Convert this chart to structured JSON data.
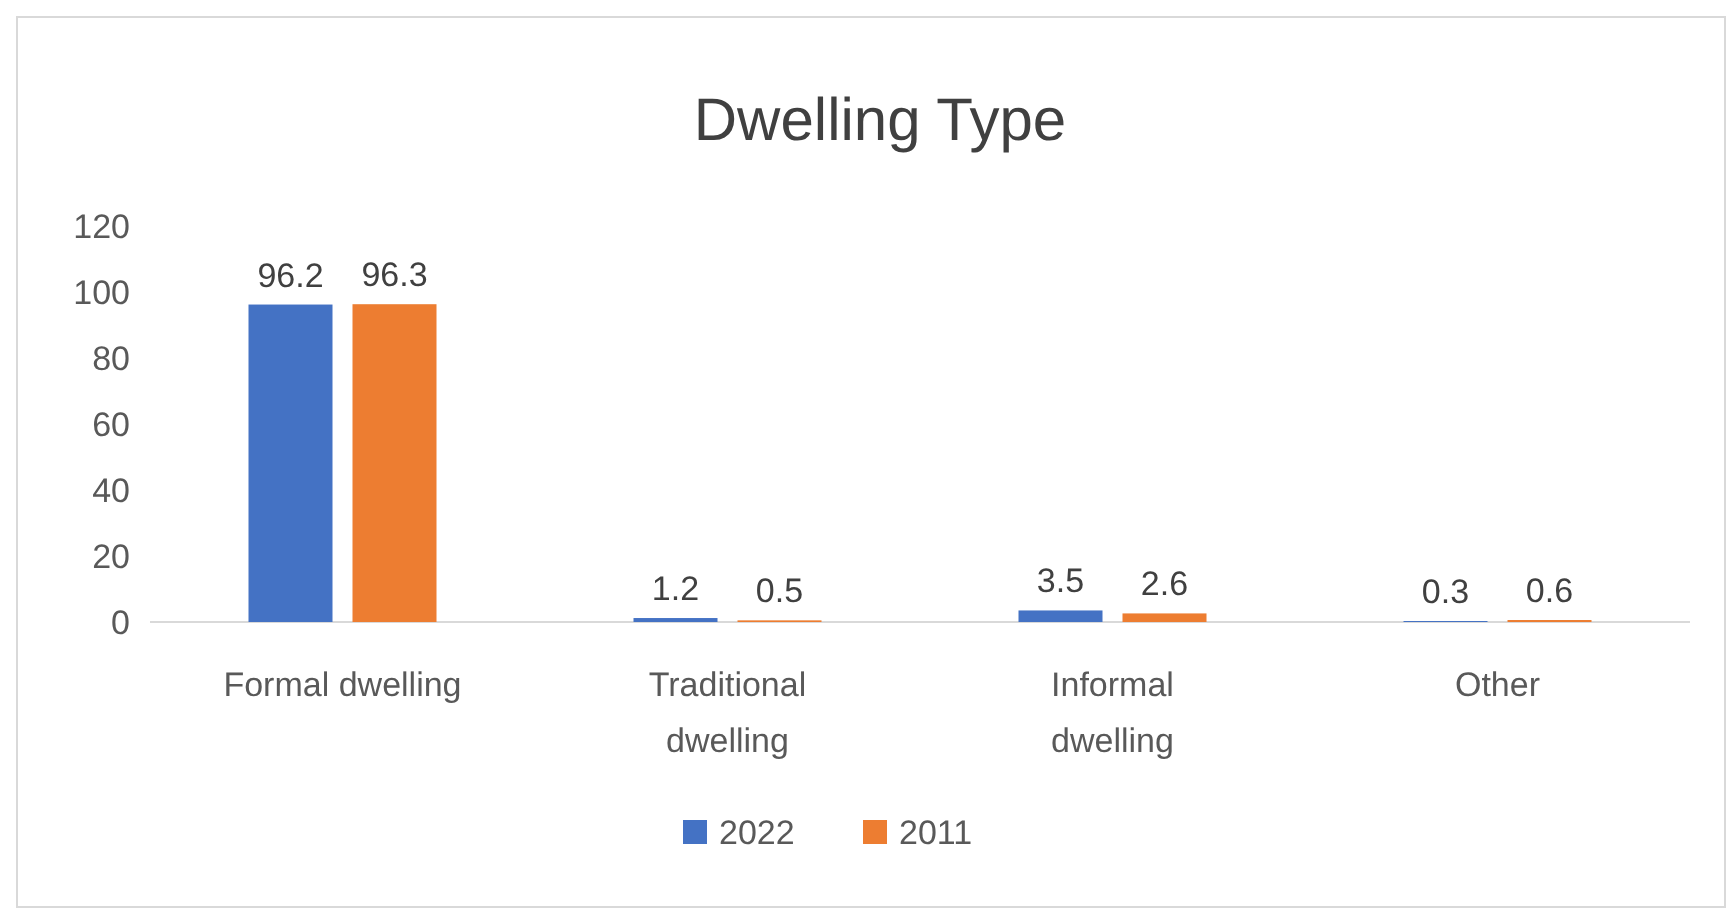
{
  "chart_data": {
    "type": "bar",
    "title": "Dwelling Type",
    "categories": [
      "Formal dwelling",
      "Traditional dwelling",
      "Informal dwelling",
      "Other"
    ],
    "series": [
      {
        "name": "2022",
        "color": "#4472c4",
        "values": [
          96.2,
          1.2,
          3.5,
          0.3
        ]
      },
      {
        "name": "2011",
        "color": "#ed7d31",
        "values": [
          96.3,
          0.5,
          2.6,
          0.6
        ]
      }
    ],
    "ylim": [
      0,
      120
    ],
    "yticks": [
      0,
      20,
      40,
      60,
      80,
      100,
      120
    ],
    "grid": false,
    "legend": "bottom",
    "data_labels": true
  }
}
